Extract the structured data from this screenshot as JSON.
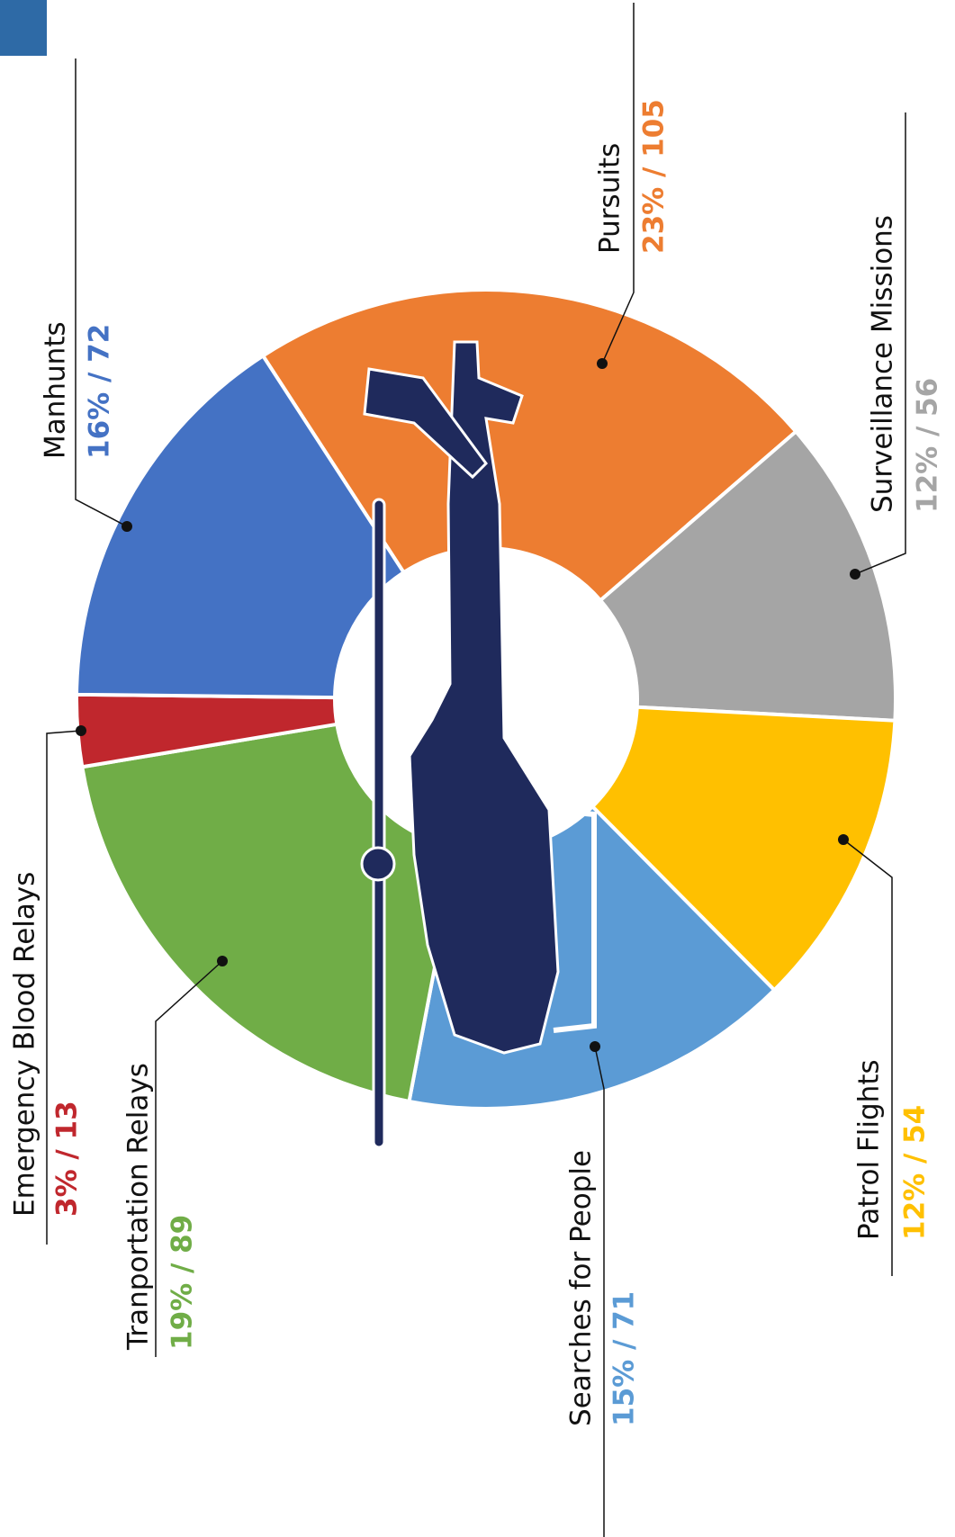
{
  "chart_data": {
    "type": "donut",
    "categories": [
      "Pursuits",
      "Surveillance Missions",
      "Patrol Flights",
      "Searches for People",
      "Tranportation Relays",
      "Emergency Blood Relays",
      "Manhunts"
    ],
    "values": [
      105,
      56,
      54,
      71,
      89,
      13,
      72
    ],
    "value_labels": [
      "23%  /  105",
      "12%  /  56",
      "12%  /  54",
      "15%  /  71",
      "19%  /  89",
      "3%  /  13",
      "16%  /  72"
    ],
    "colors": [
      "#ed7d31",
      "#a5a5a5",
      "#ffc000",
      "#5b9bd5",
      "#70ad47",
      "#c0272d",
      "#4472c4"
    ]
  }
}
